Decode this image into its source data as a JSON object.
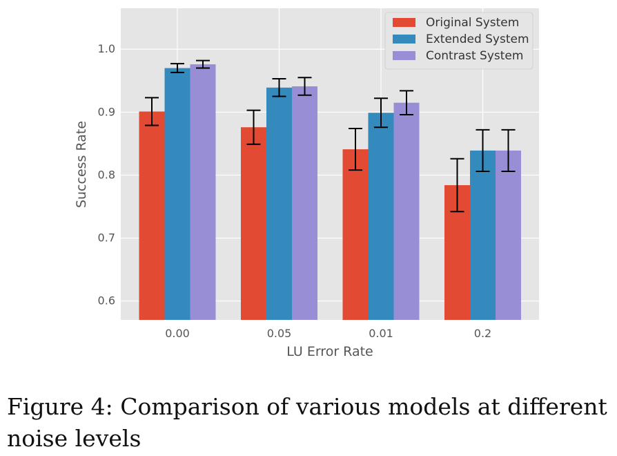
{
  "chart_data": {
    "type": "bar",
    "title": "",
    "xlabel": "LU Error Rate",
    "ylabel": "Success Rate",
    "categories": [
      "0.00",
      "0.05",
      "0.01",
      "0.2"
    ],
    "ylim": [
      0.57,
      1.065
    ],
    "yticks": [
      0.6,
      0.7,
      0.8,
      0.9,
      1.0
    ],
    "ytick_labels": [
      "0.6",
      "0.7",
      "0.8",
      "0.9",
      "1.0"
    ],
    "grid": true,
    "legend_position": "top-right",
    "series": [
      {
        "name": "Original System",
        "color": "#E24A33",
        "values": [
          0.901,
          0.876,
          0.841,
          0.784
        ],
        "errors": [
          0.022,
          0.027,
          0.033,
          0.042
        ]
      },
      {
        "name": "Extended System",
        "color": "#348ABD",
        "values": [
          0.97,
          0.939,
          0.899,
          0.839
        ],
        "errors": [
          0.007,
          0.014,
          0.023,
          0.033
        ]
      },
      {
        "name": "Contrast System",
        "color": "#988ED5",
        "values": [
          0.976,
          0.941,
          0.915,
          0.839
        ],
        "errors": [
          0.006,
          0.014,
          0.019,
          0.033
        ]
      }
    ]
  },
  "caption": "Figure 4: Comparison of various models at different noise levels",
  "style": {
    "plot_background": "#E5E5E5",
    "grid_color": "#FFFFFF",
    "text_color": "#555555"
  }
}
